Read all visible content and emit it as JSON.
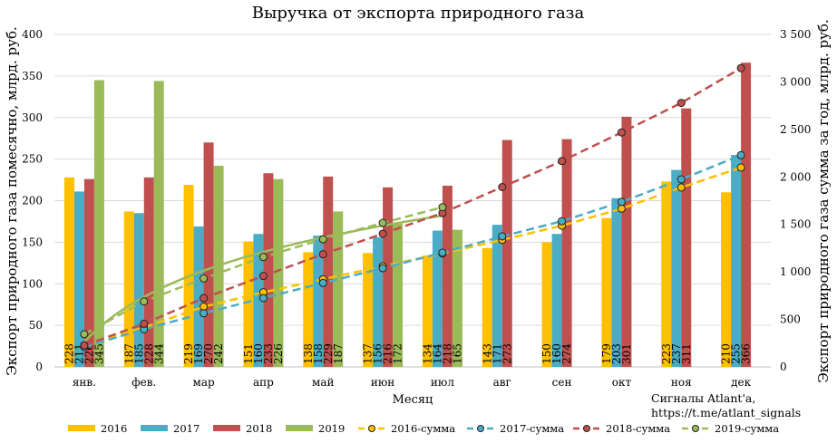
{
  "chart_data": {
    "type": "bar",
    "title": "Выручка от экспорта природного газа",
    "xlabel": "Месяц",
    "ylabel": "Экспорт природного газа помесячно, млрд. руб.",
    "y2label": "Экспорт природного газа сумма за год, млрд. руб.",
    "categories": [
      "янв.",
      "фев.",
      "мар",
      "апр",
      "май",
      "июн",
      "июл",
      "авг",
      "сен",
      "окт",
      "ноя",
      "дек"
    ],
    "ylim": [
      0,
      400
    ],
    "yticks": [
      0,
      50,
      100,
      150,
      200,
      250,
      300,
      350,
      400
    ],
    "y2lim": [
      0,
      3500
    ],
    "y2ticks": [
      0,
      500,
      1000,
      1500,
      2000,
      2500,
      3000,
      3500
    ],
    "y2tick_labels": [
      "0",
      "500",
      "1 000",
      "1 500",
      "2 000",
      "2 500",
      "3 000",
      "3 500"
    ],
    "grid": true,
    "legend_position": "bottom",
    "series": [
      {
        "name": "2016",
        "kind": "bar",
        "color": "#FFC000",
        "values": [
          228,
          187,
          219,
          151,
          138,
          137,
          134,
          143,
          150,
          179,
          223,
          210
        ]
      },
      {
        "name": "2017",
        "kind": "bar",
        "color": "#4BACC6",
        "values": [
          211,
          185,
          169,
          160,
          158,
          156,
          164,
          171,
          160,
          203,
          237,
          255
        ]
      },
      {
        "name": "2018",
        "kind": "bar",
        "color": "#C0504D",
        "values": [
          226,
          228,
          270,
          233,
          229,
          216,
          218,
          273,
          274,
          301,
          311,
          366
        ]
      },
      {
        "name": "2019",
        "kind": "bar",
        "color": "#9BBB59",
        "values": [
          345,
          344,
          242,
          226,
          187,
          172,
          165,
          null,
          null,
          null,
          null,
          null
        ]
      }
    ],
    "cumulative_series": [
      {
        "name": "2016-сумма",
        "color": "#FFC000",
        "values": [
          228,
          415,
          634,
          785,
          923,
          1060,
          1194,
          1337,
          1487,
          1666,
          1889,
          2099
        ]
      },
      {
        "name": "2017-сумма",
        "color": "#4BACC6",
        "values": [
          211,
          396,
          565,
          725,
          883,
          1039,
          1203,
          1374,
          1534,
          1737,
          1974,
          2229
        ]
      },
      {
        "name": "2018-сумма",
        "color": "#C0504D",
        "values": [
          226,
          454,
          724,
          957,
          1186,
          1402,
          1620,
          1893,
          2167,
          2468,
          2779,
          3145
        ]
      },
      {
        "name": "2019-сумма",
        "color": "#9BBB59",
        "values": [
          345,
          689,
          931,
          1157,
          1344,
          1516,
          1681,
          null,
          null,
          null,
          null,
          null
        ]
      }
    ],
    "trendline_color": "#9BBB59",
    "credit": [
      "Сигналы Atlant'a,",
      "https://t.me/atlant_signals"
    ]
  }
}
